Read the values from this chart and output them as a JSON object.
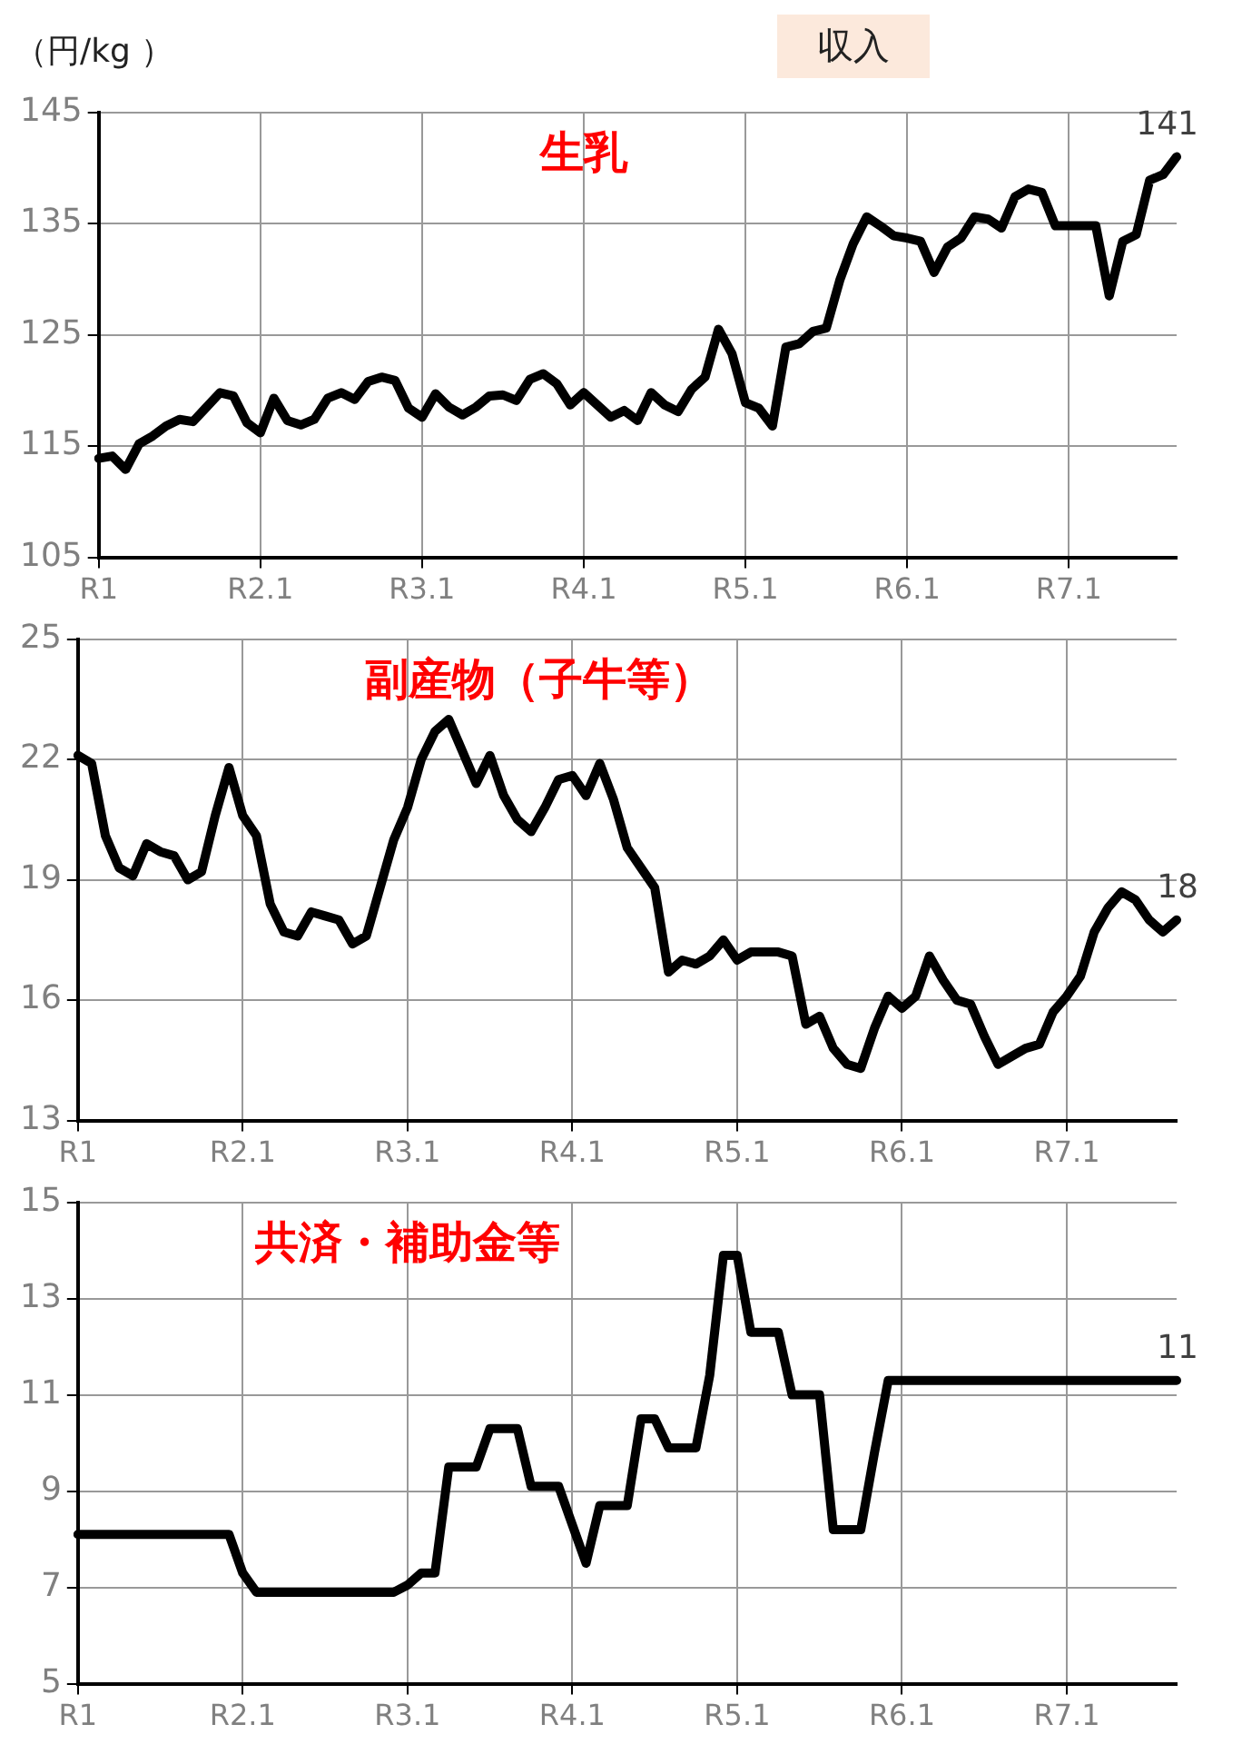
{
  "chart_data": [
    {
      "type": "line",
      "title": "生乳",
      "ylabel": "（円/kg ）",
      "annotations": [
        "収入"
      ],
      "categories": [
        "R1",
        null,
        null,
        null,
        null,
        null,
        null,
        null,
        null,
        null,
        null,
        null,
        "R2.1",
        null,
        null,
        null,
        null,
        null,
        null,
        null,
        null,
        null,
        null,
        null,
        "R3.1",
        null,
        null,
        null,
        null,
        null,
        null,
        null,
        null,
        null,
        null,
        null,
        "R4.1",
        null,
        null,
        null,
        null,
        null,
        null,
        null,
        null,
        null,
        null,
        null,
        "R5.1",
        null,
        null,
        null,
        null,
        null,
        null,
        null,
        null,
        null,
        null,
        null,
        "R6.1",
        null,
        null,
        null,
        null,
        null,
        null,
        null,
        null,
        null,
        null,
        null,
        "R7.1",
        null,
        null,
        null,
        null,
        null,
        null,
        null,
        null
      ],
      "series": [
        {
          "color": "#000000",
          "values": [
            113.9,
            114.1,
            112.9,
            115.2,
            115.9,
            116.8,
            117.4,
            117.2,
            118.5,
            119.8,
            119.5,
            117.1,
            116.2,
            119.3,
            117.3,
            116.9,
            117.4,
            119.3,
            119.8,
            119.2,
            120.8,
            121.2,
            120.9,
            118.4,
            117.6,
            119.7,
            118.5,
            117.8,
            118.5,
            119.5,
            119.6,
            119.1,
            121.0,
            121.5,
            120.6,
            118.7,
            119.8,
            118.7,
            117.6,
            118.2,
            117.3,
            119.8,
            118.7,
            118.1,
            120.1,
            121.2,
            125.5,
            123.3,
            118.9,
            118.4,
            116.8,
            123.9,
            124.2,
            125.3,
            125.6,
            129.9,
            133.2,
            135.6,
            134.8,
            133.9,
            133.7,
            133.4,
            130.6,
            132.9,
            133.7,
            135.6,
            135.4,
            134.6,
            137.4,
            138.1,
            137.8,
            134.8,
            134.8,
            134.8,
            134.8,
            128.5,
            133.4,
            134.0,
            138.9,
            139.4,
            141.0
          ],
          "value_labels": [
            null,
            null,
            null,
            null,
            null,
            null,
            null,
            null,
            null,
            null,
            null,
            null,
            null,
            null,
            null,
            null,
            null,
            null,
            null,
            null,
            null,
            null,
            null,
            null,
            null,
            null,
            null,
            null,
            null,
            null,
            null,
            null,
            null,
            null,
            null,
            null,
            null,
            null,
            null,
            null,
            null,
            null,
            null,
            null,
            null,
            null,
            null,
            null,
            null,
            null,
            null,
            null,
            null,
            null,
            null,
            null,
            null,
            null,
            null,
            null,
            null,
            null,
            null,
            null,
            null,
            null,
            null,
            null,
            null,
            null,
            null,
            null,
            null,
            null,
            null,
            null,
            null,
            null,
            null,
            null,
            "141"
          ]
        }
      ],
      "ylim": [
        105,
        145
      ],
      "yticks": [
        105,
        115,
        125,
        135,
        145
      ],
      "grid": true,
      "legend": false,
      "marker": "none",
      "line_style": "solid"
    },
    {
      "type": "line",
      "title": "副産物（子牛等）",
      "categories": [
        "R1",
        null,
        null,
        null,
        null,
        null,
        null,
        null,
        null,
        null,
        null,
        null,
        "R2.1",
        null,
        null,
        null,
        null,
        null,
        null,
        null,
        null,
        null,
        null,
        null,
        "R3.1",
        null,
        null,
        null,
        null,
        null,
        null,
        null,
        null,
        null,
        null,
        null,
        "R4.1",
        null,
        null,
        null,
        null,
        null,
        null,
        null,
        null,
        null,
        null,
        null,
        "R5.1",
        null,
        null,
        null,
        null,
        null,
        null,
        null,
        null,
        null,
        null,
        null,
        "R6.1",
        null,
        null,
        null,
        null,
        null,
        null,
        null,
        null,
        null,
        null,
        null,
        "R7.1",
        null,
        null,
        null,
        null,
        null,
        null,
        null,
        null
      ],
      "series": [
        {
          "color": "#000000",
          "values": [
            22.1,
            21.9,
            20.1,
            19.3,
            19.1,
            19.9,
            19.7,
            19.6,
            19.0,
            19.2,
            20.6,
            21.8,
            20.6,
            20.1,
            18.4,
            17.7,
            17.6,
            18.2,
            18.1,
            18.0,
            17.4,
            17.6,
            18.8,
            20.0,
            20.8,
            22.0,
            22.7,
            23.0,
            22.2,
            21.4,
            22.1,
            21.1,
            20.5,
            20.2,
            20.8,
            21.5,
            21.6,
            21.1,
            21.9,
            21.0,
            19.8,
            19.3,
            18.8,
            16.7,
            17.0,
            16.9,
            17.1,
            17.5,
            17.0,
            17.2,
            17.2,
            17.2,
            17.1,
            15.4,
            15.6,
            14.8,
            14.4,
            14.3,
            15.3,
            16.1,
            15.8,
            16.1,
            17.1,
            16.5,
            16.0,
            15.9,
            15.1,
            14.4,
            14.6,
            14.8,
            14.9,
            15.7,
            16.1,
            16.6,
            17.7,
            18.3,
            18.7,
            18.5,
            18.0,
            17.7,
            18.0
          ],
          "value_labels": [
            null,
            null,
            null,
            null,
            null,
            null,
            null,
            null,
            null,
            null,
            null,
            null,
            null,
            null,
            null,
            null,
            null,
            null,
            null,
            null,
            null,
            null,
            null,
            null,
            null,
            null,
            null,
            null,
            null,
            null,
            null,
            null,
            null,
            null,
            null,
            null,
            null,
            null,
            null,
            null,
            null,
            null,
            null,
            null,
            null,
            null,
            null,
            null,
            null,
            null,
            null,
            null,
            null,
            null,
            null,
            null,
            null,
            null,
            null,
            null,
            null,
            null,
            null,
            null,
            null,
            null,
            null,
            null,
            null,
            null,
            null,
            null,
            null,
            null,
            null,
            null,
            null,
            null,
            null,
            null,
            "18"
          ]
        }
      ],
      "ylim": [
        13,
        25
      ],
      "yticks": [
        13,
        16,
        19,
        22,
        25
      ],
      "grid": true,
      "legend": false,
      "marker": "none",
      "line_style": "solid"
    },
    {
      "type": "line",
      "title": "共済・補助金等",
      "categories": [
        "R1",
        null,
        null,
        null,
        null,
        null,
        null,
        null,
        null,
        null,
        null,
        null,
        "R2.1",
        null,
        null,
        null,
        null,
        null,
        null,
        null,
        null,
        null,
        null,
        null,
        "R3.1",
        null,
        null,
        null,
        null,
        null,
        null,
        null,
        null,
        null,
        null,
        null,
        "R4.1",
        null,
        null,
        null,
        null,
        null,
        null,
        null,
        null,
        null,
        null,
        null,
        "R5.1",
        null,
        null,
        null,
        null,
        null,
        null,
        null,
        null,
        null,
        null,
        null,
        "R6.1",
        null,
        null,
        null,
        null,
        null,
        null,
        null,
        null,
        null,
        null,
        null,
        "R7.1",
        null,
        null,
        null,
        null,
        null,
        null,
        null,
        null
      ],
      "series": [
        {
          "color": "#000000",
          "values": [
            8.1,
            8.1,
            8.1,
            8.1,
            8.1,
            8.1,
            8.1,
            8.1,
            8.1,
            8.1,
            8.1,
            8.1,
            7.3,
            6.9,
            6.9,
            6.9,
            6.9,
            6.9,
            6.9,
            6.9,
            6.9,
            6.9,
            6.9,
            6.9,
            7.05,
            7.3,
            7.3,
            9.5,
            9.5,
            9.5,
            10.3,
            10.3,
            10.3,
            9.1,
            9.1,
            9.1,
            8.3,
            7.5,
            8.7,
            8.7,
            8.7,
            10.5,
            10.5,
            9.9,
            9.9,
            9.9,
            11.4,
            13.9,
            13.9,
            12.3,
            12.3,
            12.3,
            11.0,
            11.0,
            11.0,
            8.2,
            8.2,
            8.2,
            9.8,
            11.3,
            11.3,
            11.3,
            11.3,
            11.3,
            11.3,
            11.3,
            11.3,
            11.3,
            11.3,
            11.3,
            11.3,
            11.3,
            11.3,
            11.3,
            11.3,
            11.3,
            11.3,
            11.3,
            11.3,
            11.3,
            11.3
          ],
          "value_labels": [
            null,
            null,
            null,
            null,
            null,
            null,
            null,
            null,
            null,
            null,
            null,
            null,
            null,
            null,
            null,
            null,
            null,
            null,
            null,
            null,
            null,
            null,
            null,
            null,
            null,
            null,
            null,
            null,
            null,
            null,
            null,
            null,
            null,
            null,
            null,
            null,
            null,
            null,
            null,
            null,
            null,
            null,
            null,
            null,
            null,
            null,
            null,
            null,
            null,
            null,
            null,
            null,
            null,
            null,
            null,
            null,
            null,
            null,
            null,
            null,
            null,
            null,
            null,
            null,
            null,
            null,
            null,
            null,
            null,
            null,
            null,
            null,
            null,
            null,
            null,
            null,
            null,
            null,
            null,
            null,
            "11"
          ]
        }
      ],
      "ylim": [
        5,
        15
      ],
      "yticks": [
        5,
        7,
        9,
        11,
        13,
        15
      ],
      "grid": true,
      "legend": false,
      "marker": "none",
      "line_style": "solid"
    }
  ]
}
